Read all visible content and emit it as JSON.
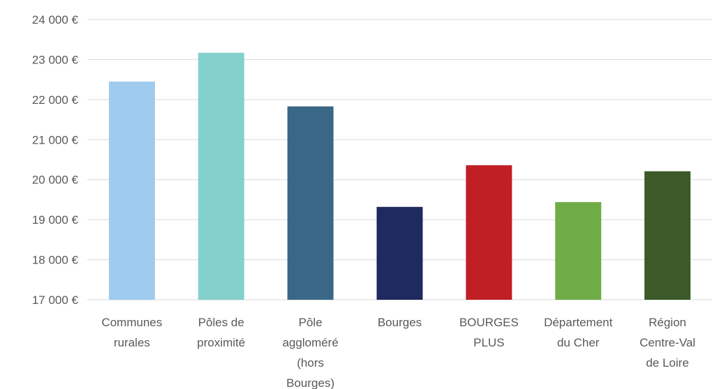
{
  "chart_data": {
    "type": "bar",
    "categories": [
      "Communes rurales",
      "Pôles de proximité",
      "Pôle aggloméré (hors Bourges)",
      "Bourges",
      "BOURGES PLUS",
      "Département du Cher",
      "Région Centre-Val de Loire"
    ],
    "values": [
      22450,
      23170,
      21830,
      19320,
      20360,
      19440,
      20210
    ],
    "colors": [
      "#9fcbee",
      "#84d0cc",
      "#3a6787",
      "#1f2a5e",
      "#c01f26",
      "#70ad47",
      "#3b5a28"
    ],
    "ylim": [
      17000,
      24000
    ],
    "yticks": [
      {
        "value": 17000,
        "label": "17 000 €"
      },
      {
        "value": 18000,
        "label": "18 000 €"
      },
      {
        "value": 19000,
        "label": "19 000 €"
      },
      {
        "value": 20000,
        "label": "20 000 €"
      },
      {
        "value": 21000,
        "label": "21 000 €"
      },
      {
        "value": 22000,
        "label": "22 000 €"
      },
      {
        "value": 23000,
        "label": "23 000 €"
      },
      {
        "value": 24000,
        "label": "24 000 €"
      }
    ],
    "grid": true
  }
}
